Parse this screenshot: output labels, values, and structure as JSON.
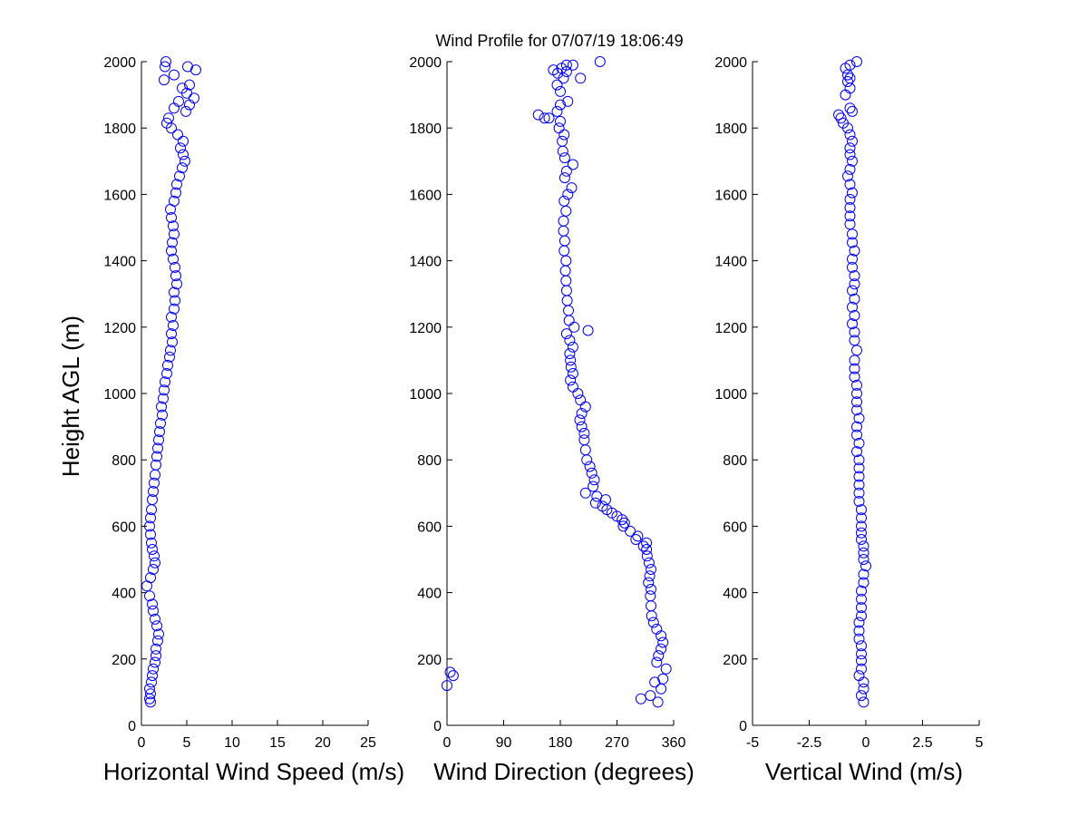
{
  "figure_title": "Wind Profile for  07/07/19 18:06:49",
  "colors": {
    "marker": "#0000ff",
    "axis": "#000000",
    "background": "#ffffff"
  },
  "chart_data": [
    {
      "type": "scatter",
      "title": "",
      "xlabel": "Horizontal Wind Speed (m/s)",
      "ylabel": "Height AGL (m)",
      "xlim": [
        0,
        25
      ],
      "ylim": [
        0,
        2000
      ],
      "xticks": [
        "0",
        "5",
        "10",
        "15",
        "20",
        "25"
      ],
      "yticks": [
        "0",
        "200",
        "400",
        "600",
        "800",
        "1000",
        "1200",
        "1400",
        "1600",
        "1800",
        "2000"
      ],
      "grid": false,
      "marker": "open-circle",
      "series": [
        {
          "x": [
            1.0,
            0.9,
            1.0,
            0.9,
            1.1,
            1.2,
            1.3,
            1.5,
            1.6,
            1.6,
            1.8,
            1.9,
            1.7,
            1.5,
            1.3,
            1.2,
            0.9,
            0.6,
            1.0,
            1.3,
            1.5,
            1.4,
            1.2,
            1.1,
            1.0,
            0.9,
            1.0,
            1.1,
            1.2,
            1.3,
            1.4,
            1.5,
            1.6,
            1.7,
            1.8,
            1.9,
            2.0,
            2.1,
            2.3,
            2.2,
            2.4,
            2.5,
            2.6,
            2.8,
            2.9,
            3.1,
            3.2,
            3.4,
            3.3,
            3.5,
            3.3,
            3.6,
            3.7,
            3.6,
            3.9,
            3.8,
            3.7,
            3.5,
            3.3,
            3.4,
            3.6,
            3.5,
            3.3,
            3.2,
            3.6,
            3.8,
            3.9,
            4.2,
            4.5,
            4.8,
            4.6,
            4.3,
            4.6,
            4.0,
            3.3,
            2.8,
            3.0,
            3.6,
            4.1,
            5.3,
            5.0,
            4.5,
            5.3,
            5.8,
            4.9,
            3.6,
            2.5,
            2.6,
            5.1,
            6.0,
            2.7
          ],
          "y": [
            70,
            80,
            95,
            110,
            130,
            150,
            170,
            190,
            210,
            230,
            255,
            275,
            300,
            320,
            345,
            365,
            390,
            420,
            445,
            470,
            490,
            510,
            530,
            550,
            575,
            600,
            625,
            650,
            680,
            705,
            730,
            755,
            785,
            810,
            835,
            860,
            885,
            910,
            935,
            960,
            985,
            1010,
            1035,
            1060,
            1085,
            1110,
            1130,
            1155,
            1180,
            1205,
            1230,
            1255,
            1280,
            1305,
            1330,
            1355,
            1380,
            1405,
            1430,
            1455,
            1480,
            1505,
            1530,
            1555,
            1580,
            1605,
            1630,
            1655,
            1680,
            1700,
            1720,
            1740,
            1760,
            1780,
            1800,
            1815,
            1830,
            1860,
            1880,
            1870,
            1905,
            1920,
            1930,
            1890,
            1850,
            1960,
            1945,
            1985,
            1985,
            1975,
            2000
          ]
        }
      ]
    },
    {
      "type": "scatter",
      "title": "",
      "xlabel": "Wind Direction (degrees)",
      "ylabel": "",
      "xlim": [
        0,
        360
      ],
      "ylim": [
        0,
        2000
      ],
      "xticks": [
        "0",
        "90",
        "180",
        "270",
        "360"
      ],
      "yticks": [
        "0",
        "200",
        "400",
        "600",
        "800",
        "1000",
        "1200",
        "1400",
        "1600",
        "1800",
        "2000"
      ],
      "grid": false,
      "marker": "open-circle",
      "series": [
        {
          "x": [
            335,
            308,
            323,
            340,
            343,
            330,
            348,
            5,
            10,
            0,
            333,
            336,
            340,
            343,
            340,
            333,
            328,
            325,
            324,
            323,
            324,
            320,
            322,
            324,
            321,
            318,
            317,
            312,
            317,
            300,
            303,
            291,
            280,
            282,
            278,
            270,
            262,
            254,
            247,
            236,
            252,
            238,
            220,
            232,
            234,
            230,
            227,
            222,
            220,
            218,
            218,
            214,
            211,
            214,
            220,
            212,
            208,
            200,
            196,
            200,
            197,
            196,
            195,
            200,
            195,
            190,
            224,
            202,
            194,
            193,
            191,
            190,
            189,
            188,
            189,
            186,
            187,
            185,
            185,
            189,
            186,
            192,
            198,
            187,
            190,
            200,
            187,
            184,
            183,
            186,
            178,
            180,
            162,
            145,
            155,
            175,
            180,
            192,
            180,
            175,
            185,
            190,
            169,
            176,
            212,
            200,
            190,
            182,
            243
          ],
          "y": [
            70,
            80,
            90,
            110,
            140,
            130,
            170,
            160,
            150,
            120,
            190,
            210,
            230,
            250,
            270,
            290,
            310,
            330,
            360,
            390,
            410,
            430,
            450,
            470,
            490,
            510,
            530,
            540,
            550,
            560,
            570,
            585,
            600,
            610,
            620,
            630,
            640,
            650,
            660,
            670,
            680,
            690,
            700,
            720,
            740,
            760,
            780,
            800,
            830,
            860,
            880,
            900,
            920,
            940,
            960,
            980,
            1000,
            1020,
            1040,
            1060,
            1080,
            1100,
            1120,
            1140,
            1160,
            1180,
            1190,
            1200,
            1220,
            1250,
            1280,
            1310,
            1340,
            1370,
            1400,
            1430,
            1460,
            1490,
            1520,
            1550,
            1580,
            1600,
            1620,
            1650,
            1670,
            1690,
            1710,
            1730,
            1760,
            1780,
            1800,
            1820,
            1830,
            1840,
            1830,
            1850,
            1870,
            1880,
            1910,
            1930,
            1950,
            1970,
            1975,
            1965,
            1950,
            1990,
            1990,
            1980,
            2000
          ]
        }
      ]
    },
    {
      "type": "scatter",
      "title": "",
      "xlabel": "Vertical Wind (m/s)",
      "ylabel": "",
      "xlim": [
        -5,
        5
      ],
      "ylim": [
        0,
        2000
      ],
      "xticks": [
        "-5",
        "-2.5",
        "0",
        "2.5",
        "5"
      ],
      "yticks": [
        "0",
        "200",
        "400",
        "600",
        "800",
        "1000",
        "1200",
        "1400",
        "1600",
        "1800",
        "2000"
      ],
      "grid": false,
      "marker": "open-circle",
      "series": [
        {
          "x": [
            -0.1,
            -0.2,
            -0.1,
            -0.1,
            -0.3,
            -0.2,
            -0.2,
            -0.2,
            -0.2,
            -0.3,
            -0.3,
            -0.3,
            -0.2,
            -0.2,
            -0.2,
            -0.2,
            -0.1,
            -0.1,
            0.0,
            -0.1,
            -0.1,
            -0.1,
            -0.2,
            -0.2,
            -0.2,
            -0.2,
            -0.2,
            -0.3,
            -0.3,
            -0.3,
            -0.3,
            -0.3,
            -0.3,
            -0.4,
            -0.3,
            -0.4,
            -0.4,
            -0.3,
            -0.4,
            -0.4,
            -0.4,
            -0.4,
            -0.5,
            -0.5,
            -0.5,
            -0.4,
            -0.5,
            -0.5,
            -0.6,
            -0.5,
            -0.6,
            -0.5,
            -0.6,
            -0.5,
            -0.5,
            -0.6,
            -0.6,
            -0.5,
            -0.6,
            -0.6,
            -0.7,
            -0.7,
            -0.7,
            -0.7,
            -0.6,
            -0.7,
            -0.8,
            -0.7,
            -0.6,
            -0.7,
            -0.7,
            -0.6,
            -0.7,
            -0.8,
            -1.0,
            -1.1,
            -1.2,
            -0.6,
            -0.7,
            -0.9,
            -0.7,
            -0.8,
            -0.7,
            -0.8,
            -0.9,
            -0.7,
            -0.4
          ],
          "y": [
            70,
            90,
            110,
            130,
            150,
            170,
            195,
            215,
            240,
            260,
            285,
            310,
            330,
            355,
            380,
            405,
            430,
            455,
            480,
            500,
            520,
            540,
            560,
            580,
            600,
            625,
            650,
            675,
            700,
            725,
            750,
            775,
            800,
            825,
            850,
            875,
            900,
            925,
            950,
            975,
            1000,
            1025,
            1050,
            1075,
            1100,
            1130,
            1160,
            1185,
            1210,
            1235,
            1260,
            1285,
            1310,
            1330,
            1355,
            1380,
            1405,
            1430,
            1455,
            1480,
            1510,
            1535,
            1560,
            1585,
            1605,
            1630,
            1655,
            1675,
            1700,
            1720,
            1740,
            1760,
            1780,
            1800,
            1815,
            1830,
            1840,
            1850,
            1860,
            1900,
            1920,
            1940,
            1950,
            1960,
            1980,
            1990,
            2000
          ]
        }
      ]
    }
  ]
}
